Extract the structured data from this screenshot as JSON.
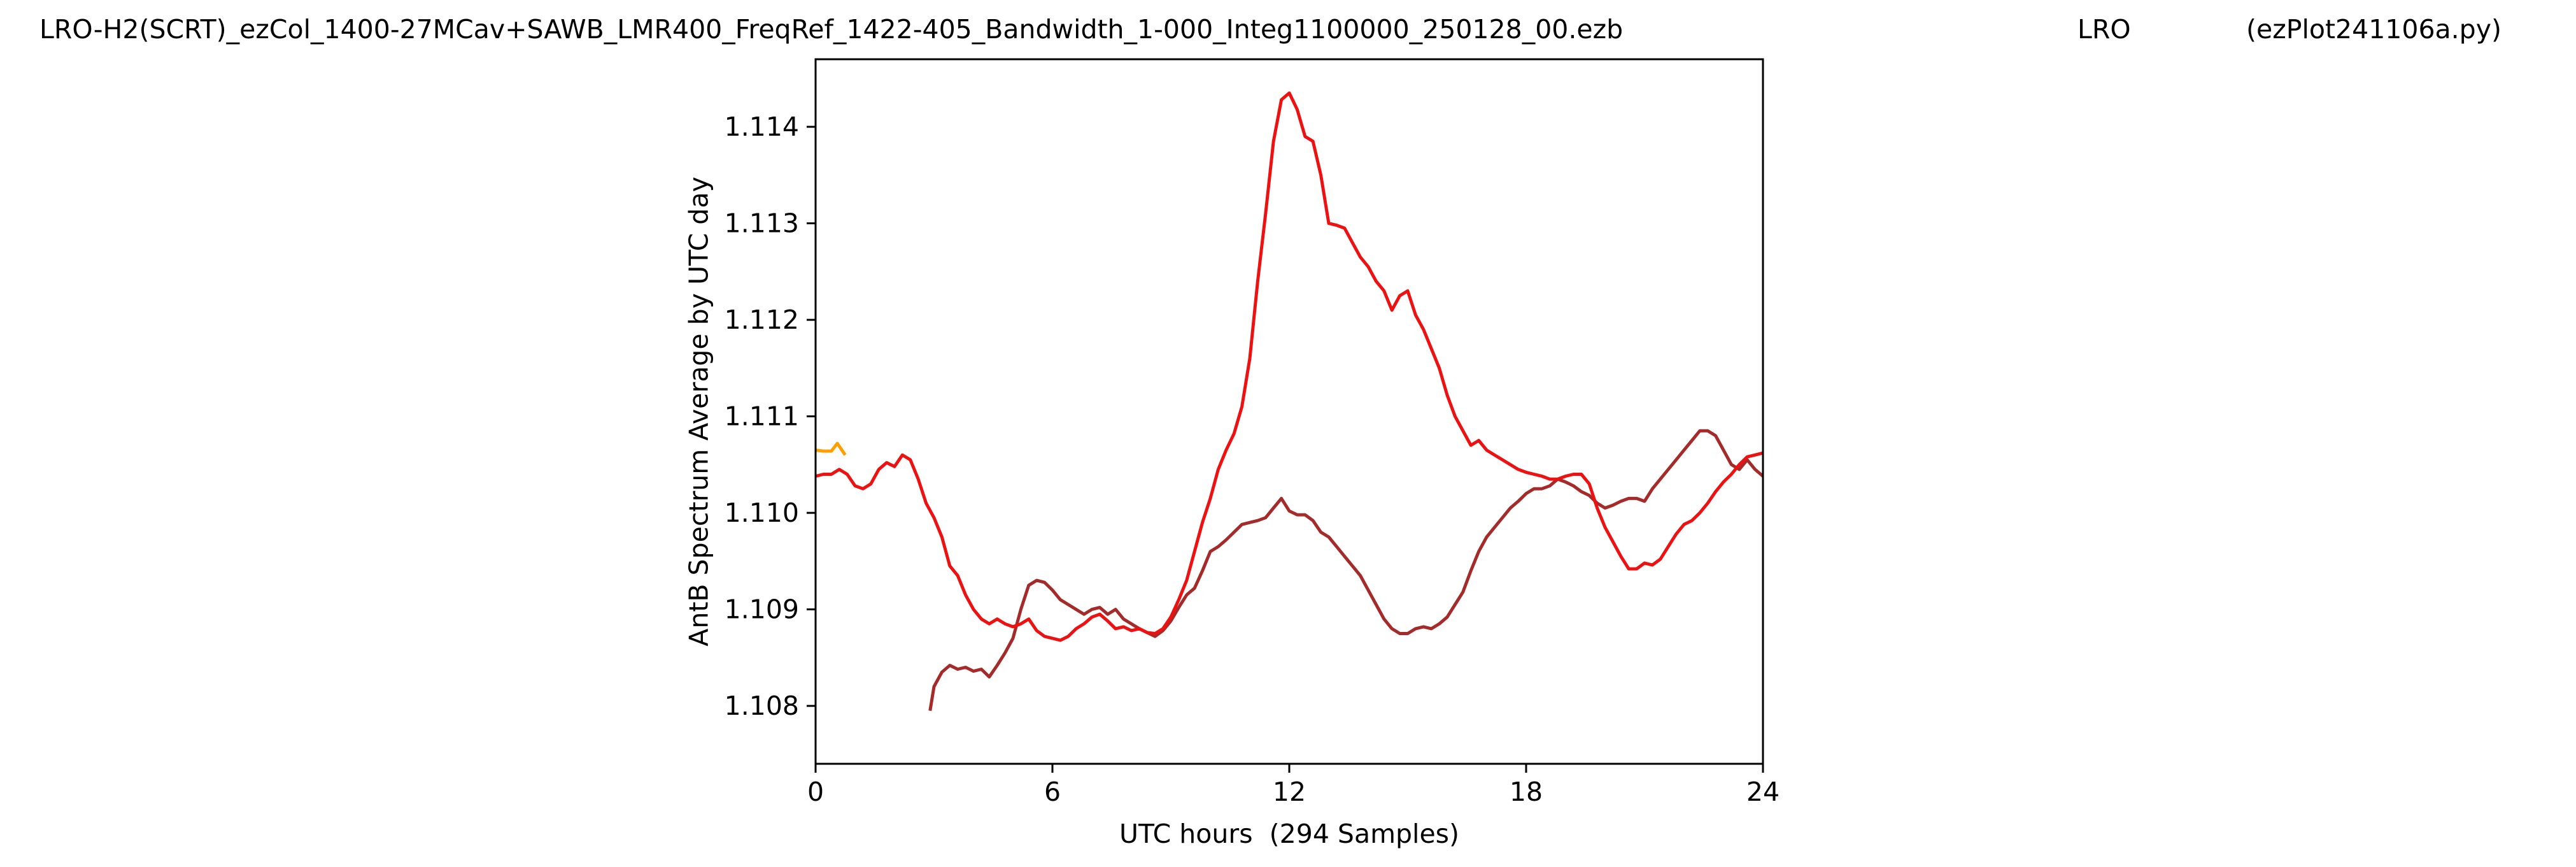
{
  "header": {
    "file_title": "LRO-H2(SCRT)_ezCol_1400-27MCav+SAWB_LMR400_FreqRef_1422-405_Bandwidth_1-000_Integ1100000_250128_00.ezb",
    "site": "LRO",
    "program": "(ezPlot241106a.py)"
  },
  "chart_data": {
    "type": "line",
    "title": "",
    "xlabel": "UTC hours  (294 Samples)",
    "ylabel": "AntB Spectrum Average by UTC day",
    "xlim": [
      0,
      24
    ],
    "ylim": [
      1.1074,
      1.1147
    ],
    "x_ticks": [
      0,
      6,
      12,
      18,
      24
    ],
    "x_tick_labels": [
      "0",
      "6",
      "12",
      "18",
      "24"
    ],
    "y_ticks": [
      1.108,
      1.109,
      1.11,
      1.111,
      1.112,
      1.113,
      1.114
    ],
    "y_tick_labels": [
      "1.108",
      "1.109",
      "1.110",
      "1.111",
      "1.112",
      "1.113",
      "1.114"
    ],
    "grid": false,
    "legend": "none",
    "series": [
      {
        "color": "#ff9f00",
        "x": [
          0.0,
          0.2,
          0.4,
          0.55,
          0.75
        ],
        "y": [
          1.11065,
          1.11064,
          1.11064,
          1.11072,
          1.1106
        ]
      },
      {
        "color": "#a52a2a",
        "x": [
          2.9,
          3.0,
          3.2,
          3.4,
          3.6,
          3.8,
          4.0,
          4.2,
          4.4,
          4.6,
          4.8,
          5.0,
          5.2,
          5.4,
          5.6,
          5.8,
          6.0,
          6.2,
          6.4,
          6.6,
          6.8,
          7.0,
          7.2,
          7.4,
          7.6,
          7.8,
          8.0,
          8.2,
          8.4,
          8.6,
          8.8,
          9.0,
          9.2,
          9.4,
          9.6,
          9.8,
          10.0,
          10.2,
          10.4,
          10.6,
          10.8,
          11.0,
          11.2,
          11.4,
          11.6,
          11.8,
          12.0,
          12.2,
          12.4,
          12.6,
          12.8,
          13.0,
          13.2,
          13.4,
          13.6,
          13.8,
          14.0,
          14.2,
          14.4,
          14.6,
          14.8,
          15.0,
          15.2,
          15.4,
          15.6,
          15.8,
          16.0,
          16.2,
          16.4,
          16.6,
          16.8,
          17.0,
          17.2,
          17.4,
          17.6,
          17.8,
          18.0,
          18.2,
          18.4,
          18.6,
          18.8,
          19.0,
          19.2,
          19.4,
          19.6,
          19.8,
          20.0,
          20.2,
          20.4,
          20.6,
          20.8,
          21.0,
          21.2,
          21.4,
          21.6,
          21.8,
          22.0,
          22.2,
          22.4,
          22.6,
          22.8,
          23.0,
          23.2,
          23.4,
          23.6,
          23.8,
          24.0
        ],
        "y": [
          1.10795,
          1.1082,
          1.10835,
          1.10842,
          1.10838,
          1.1084,
          1.10836,
          1.10838,
          1.1083,
          1.10842,
          1.10855,
          1.1087,
          1.109,
          1.10925,
          1.1093,
          1.10928,
          1.1092,
          1.1091,
          1.10905,
          1.109,
          1.10895,
          1.109,
          1.10902,
          1.10895,
          1.109,
          1.1089,
          1.10885,
          1.1088,
          1.10876,
          1.10872,
          1.10878,
          1.10888,
          1.10902,
          1.10915,
          1.10922,
          1.1094,
          1.1096,
          1.10965,
          1.10972,
          1.1098,
          1.10988,
          1.1099,
          1.10992,
          1.10995,
          1.11005,
          1.11015,
          1.11002,
          1.10998,
          1.10998,
          1.10992,
          1.1098,
          1.10975,
          1.10965,
          1.10955,
          1.10945,
          1.10935,
          1.1092,
          1.10905,
          1.1089,
          1.1088,
          1.10875,
          1.10875,
          1.1088,
          1.10882,
          1.1088,
          1.10885,
          1.10892,
          1.10905,
          1.10918,
          1.1094,
          1.1096,
          1.10975,
          1.10985,
          1.10995,
          1.11005,
          1.11012,
          1.1102,
          1.11025,
          1.11025,
          1.11028,
          1.11035,
          1.11032,
          1.11028,
          1.11022,
          1.11018,
          1.1101,
          1.11005,
          1.11008,
          1.11012,
          1.11015,
          1.11015,
          1.11012,
          1.11025,
          1.11035,
          1.11045,
          1.11055,
          1.11065,
          1.11075,
          1.11085,
          1.11085,
          1.1108,
          1.11065,
          1.1105,
          1.11045,
          1.11055,
          1.11045,
          1.11038
        ]
      },
      {
        "color": "#ee1111",
        "x": [
          0.0,
          0.2,
          0.4,
          0.6,
          0.8,
          1.0,
          1.2,
          1.4,
          1.6,
          1.8,
          2.0,
          2.2,
          2.4,
          2.6,
          2.8,
          3.0,
          3.2,
          3.4,
          3.6,
          3.8,
          4.0,
          4.2,
          4.4,
          4.6,
          4.8,
          5.0,
          5.2,
          5.4,
          5.6,
          5.8,
          6.0,
          6.2,
          6.4,
          6.6,
          6.8,
          7.0,
          7.2,
          7.4,
          7.6,
          7.8,
          8.0,
          8.2,
          8.4,
          8.6,
          8.8,
          9.0,
          9.2,
          9.4,
          9.6,
          9.8,
          10.0,
          10.2,
          10.4,
          10.6,
          10.8,
          11.0,
          11.2,
          11.4,
          11.6,
          11.8,
          12.0,
          12.2,
          12.4,
          12.6,
          12.8,
          13.0,
          13.2,
          13.4,
          13.6,
          13.8,
          14.0,
          14.2,
          14.4,
          14.6,
          14.8,
          15.0,
          15.2,
          15.4,
          15.6,
          15.8,
          16.0,
          16.2,
          16.4,
          16.6,
          16.8,
          17.0,
          17.2,
          17.4,
          17.6,
          17.8,
          18.0,
          18.2,
          18.4,
          18.6,
          18.8,
          19.0,
          19.2,
          19.4,
          19.6,
          19.8,
          20.0,
          20.2,
          20.4,
          20.6,
          20.8,
          21.0,
          21.2,
          21.4,
          21.6,
          21.8,
          22.0,
          22.2,
          22.4,
          22.6,
          22.8,
          23.0,
          23.2,
          23.4,
          23.6,
          23.8,
          24.0
        ],
        "y": [
          1.11038,
          1.1104,
          1.1104,
          1.11045,
          1.1104,
          1.11028,
          1.11025,
          1.1103,
          1.11045,
          1.11052,
          1.11048,
          1.1106,
          1.11055,
          1.11035,
          1.1101,
          1.10995,
          1.10975,
          1.10945,
          1.10935,
          1.10915,
          1.109,
          1.1089,
          1.10885,
          1.1089,
          1.10885,
          1.10882,
          1.10885,
          1.1089,
          1.10878,
          1.10872,
          1.1087,
          1.10868,
          1.10872,
          1.1088,
          1.10885,
          1.10892,
          1.10895,
          1.10888,
          1.1088,
          1.10882,
          1.10878,
          1.1088,
          1.10876,
          1.10875,
          1.1088,
          1.10892,
          1.1091,
          1.1093,
          1.1096,
          1.1099,
          1.11015,
          1.11045,
          1.11065,
          1.11082,
          1.1111,
          1.1116,
          1.1124,
          1.1131,
          1.11385,
          1.11428,
          1.11435,
          1.11418,
          1.1139,
          1.11385,
          1.1135,
          1.113,
          1.11298,
          1.11295,
          1.1128,
          1.11265,
          1.11255,
          1.1124,
          1.1123,
          1.1121,
          1.11225,
          1.1123,
          1.11205,
          1.1119,
          1.1117,
          1.1115,
          1.11122,
          1.111,
          1.11085,
          1.1107,
          1.11075,
          1.11065,
          1.1106,
          1.11055,
          1.1105,
          1.11045,
          1.11042,
          1.1104,
          1.11038,
          1.11035,
          1.11035,
          1.11038,
          1.1104,
          1.1104,
          1.1103,
          1.11005,
          1.10985,
          1.1097,
          1.10955,
          1.10942,
          1.10942,
          1.10948,
          1.10946,
          1.10952,
          1.10965,
          1.10978,
          1.10988,
          1.10992,
          1.11,
          1.1101,
          1.11022,
          1.11032,
          1.1104,
          1.1105,
          1.11058,
          1.1106,
          1.11062
        ]
      }
    ]
  }
}
